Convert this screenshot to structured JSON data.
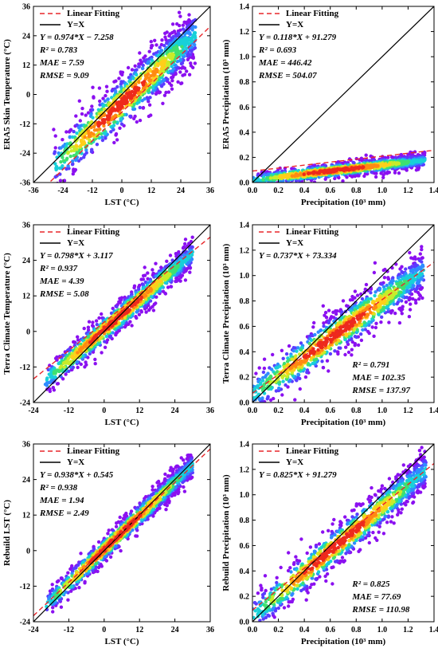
{
  "chart_data": [
    {
      "id": "era5-lst",
      "type": "scatter",
      "xlabel": "LST (°C)",
      "ylabel": "ERA5 Skin Temperature (°C)",
      "xlim": [
        -36,
        36
      ],
      "ylim": [
        -36,
        36
      ],
      "xticks": [
        "-36",
        "-24",
        "-12",
        "0",
        "12",
        "24",
        "36"
      ],
      "yticks": [
        "-36",
        "-24",
        "-12",
        "0",
        "12",
        "24",
        "36"
      ],
      "legend": [
        "Linear Fitting",
        "Y=X"
      ],
      "stats": [
        "Y = 0.974*X − 7.258",
        "R² = 0.783",
        "MAE = 7.59",
        "RMSE = 9.09"
      ],
      "stats_position": "top-left",
      "fit": {
        "slope": 0.974,
        "intercept": -7.258
      },
      "cloud": {
        "x_range": [
          -28,
          30
        ],
        "slope": 0.93,
        "intercept": -3.5,
        "spread": 5.5
      }
    },
    {
      "id": "era5-precip",
      "type": "scatter",
      "xlabel": "Precipitation (10³ mm)",
      "ylabel": "ERA5 Precipitation (10³ mm)",
      "xlim": [
        0,
        1.4
      ],
      "ylim": [
        0,
        1.4
      ],
      "xticks": [
        "0.0",
        "0.2",
        "0.4",
        "0.6",
        "0.8",
        "1.0",
        "1.2",
        "1.4"
      ],
      "yticks": [
        "0.0",
        "0.2",
        "0.4",
        "0.6",
        "0.8",
        "1.0",
        "1.2",
        "1.4"
      ],
      "legend": [
        "Linear Fitting",
        "Y=X"
      ],
      "stats": [
        "Y = 0.118*X + 91.279",
        "R² = 0.693",
        "MAE = 446.42",
        "RMSE = 504.07"
      ],
      "stats_position": "top-left",
      "fit": {
        "slope": 0.118,
        "intercept": 0.0913
      },
      "cloud": {
        "x_range": [
          0.0,
          1.33
        ],
        "slope": 0.118,
        "intercept": 0.02,
        "spread": 0.03
      }
    },
    {
      "id": "terra-lst",
      "type": "scatter",
      "xlabel": "LST (°C)",
      "ylabel": "Terra Climate Temperature (°C)",
      "xlim": [
        -24,
        36
      ],
      "ylim": [
        -24,
        36
      ],
      "xticks": [
        "-24",
        "-12",
        "0",
        "12",
        "24",
        "36"
      ],
      "yticks": [
        "-24",
        "-12",
        "0",
        "12",
        "24",
        "36"
      ],
      "legend": [
        "Linear Fitting",
        "Y=X"
      ],
      "stats": [
        "Y = 0.798*X + 3.117",
        "R² = 0.937",
        "MAE = 4.39",
        "RMSE = 5.08"
      ],
      "stats_position": "top-left",
      "fit": {
        "slope": 0.798,
        "intercept": 3.117
      },
      "cloud": {
        "x_range": [
          -20,
          30
        ],
        "slope": 0.86,
        "intercept": 0.5,
        "spread": 2.6
      }
    },
    {
      "id": "terra-precip",
      "type": "scatter",
      "xlabel": "Precipitation (10³ mm)",
      "ylabel": "Terra Climate Precipitation (10³ mm)",
      "xlim": [
        0,
        1.4
      ],
      "ylim": [
        0,
        1.4
      ],
      "xticks": [
        "0.0",
        "0.2",
        "0.4",
        "0.6",
        "0.8",
        "1.0",
        "1.2",
        "1.4"
      ],
      "yticks": [
        "0.0",
        "0.2",
        "0.4",
        "0.6",
        "0.8",
        "1.0",
        "1.2",
        "1.4"
      ],
      "legend": [
        "Linear Fitting",
        "Y=X"
      ],
      "stats_top": [
        "Y = 0.737*X + 73.334"
      ],
      "stats_bottom": [
        "R² = 0.791",
        "MAE = 102.35",
        "RMSE = 137.97"
      ],
      "fit": {
        "slope": 0.737,
        "intercept": 0.0733
      },
      "cloud": {
        "x_range": [
          0.0,
          1.32
        ],
        "slope": 0.74,
        "intercept": 0.06,
        "spread": 0.09
      }
    },
    {
      "id": "rebuild-lst",
      "type": "scatter",
      "xlabel": "LST (°C)",
      "ylabel": "Rebuild LST (°C)",
      "xlim": [
        -24,
        36
      ],
      "ylim": [
        -24,
        36
      ],
      "xticks": [
        "-24",
        "-12",
        "0",
        "12",
        "24",
        "36"
      ],
      "yticks": [
        "-24",
        "-12",
        "0",
        "12",
        "24",
        "36"
      ],
      "legend": [
        "Linear Fitting",
        "Y=X"
      ],
      "stats": [
        "Y = 0.938*X + 0.545",
        "R² = 0.938",
        "MAE = 1.94",
        "RMSE = 2.49"
      ],
      "stats_position": "top-left",
      "fit": {
        "slope": 0.938,
        "intercept": 0.545
      },
      "cloud": {
        "x_range": [
          -20,
          30
        ],
        "slope": 0.95,
        "intercept": 0.4,
        "spread": 2.2
      }
    },
    {
      "id": "rebuild-precip",
      "type": "scatter",
      "xlabel": "Precipitation (10³ mm)",
      "ylabel": "Rebuild Precipitation (10³ mm)",
      "xlim": [
        0,
        1.4
      ],
      "ylim": [
        0,
        1.4
      ],
      "xticks": [
        "0.0",
        "0.2",
        "0.4",
        "0.6",
        "0.8",
        "1.0",
        "1.2",
        "1.4"
      ],
      "yticks": [
        "0.0",
        "0.2",
        "0.4",
        "0.6",
        "0.8",
        "1.0",
        "1.2",
        "1.4"
      ],
      "legend": [
        "Linear Fitting",
        "Y=X"
      ],
      "stats_top": [
        "Y = 0.825*X + 91.279"
      ],
      "stats_bottom": [
        "R² = 0.825",
        "MAE = 77.69",
        "RMSE = 110.98"
      ],
      "fit": {
        "slope": 0.825,
        "intercept": 0.0913
      },
      "cloud": {
        "x_range": [
          0.0,
          1.34
        ],
        "slope": 0.86,
        "intercept": 0.04,
        "spread": 0.08
      }
    }
  ],
  "colors": {
    "fit_line": "#e8262a",
    "identity_line": "#000000",
    "density_ramp": [
      "#8b10f0",
      "#5a3cff",
      "#2f8cff",
      "#18d0d8",
      "#3fe070",
      "#c8ec2a",
      "#ffcf1a",
      "#ff8a12",
      "#ee2a1c"
    ]
  }
}
